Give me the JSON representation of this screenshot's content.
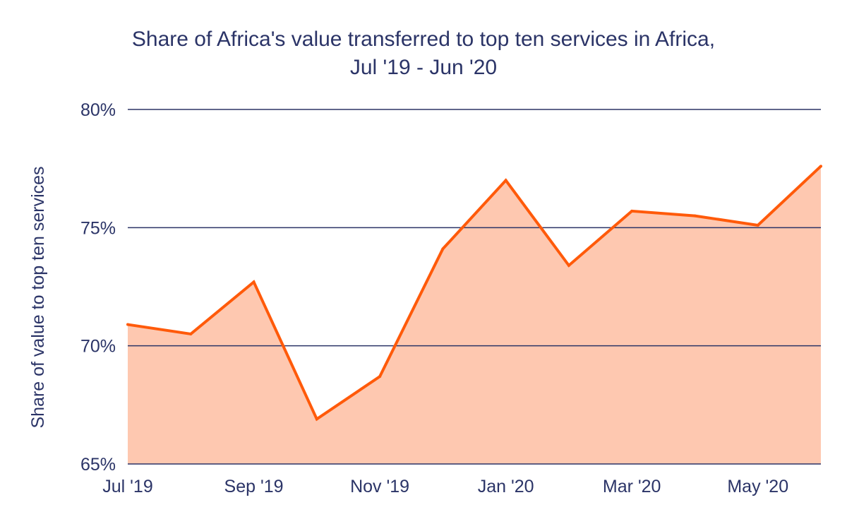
{
  "chart_data": {
    "type": "area",
    "title": "Share of Africa's value transferred to top ten services in Africa,",
    "subtitle": "Jul '19 - Jun '20",
    "xlabel": "",
    "ylabel": "Share of value to top ten services",
    "categories": [
      "Jul '19",
      "Aug '19",
      "Sep '19",
      "Oct '19",
      "Nov '19",
      "Dec '19",
      "Jan '20",
      "Feb '20",
      "Mar '20",
      "Apr '20",
      "May '20",
      "Jun '20"
    ],
    "x_tick_labels": [
      "Jul '19",
      "Sep '19",
      "Nov '19",
      "Jan '20",
      "Mar '20",
      "May '20"
    ],
    "y_ticks": [
      "65%",
      "70%",
      "75%",
      "80%"
    ],
    "ylim": [
      65,
      80
    ],
    "series": [
      {
        "values": [
          70.9,
          70.5,
          72.7,
          66.9,
          68.7,
          74.1,
          77.0,
          73.4,
          75.7,
          75.5,
          75.1,
          77.6
        ]
      }
    ],
    "grid": true,
    "colors": {
      "line": "#ff5a0a",
      "fill": "#fec8b0",
      "grid": "#2b3467",
      "text": "#2b3467"
    }
  }
}
